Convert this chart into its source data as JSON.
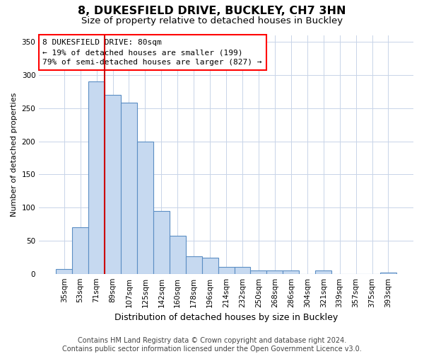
{
  "title": "8, DUKESFIELD DRIVE, BUCKLEY, CH7 3HN",
  "subtitle": "Size of property relative to detached houses in Buckley",
  "xlabel": "Distribution of detached houses by size in Buckley",
  "ylabel": "Number of detached properties",
  "bar_labels": [
    "35sqm",
    "53sqm",
    "71sqm",
    "89sqm",
    "107sqm",
    "125sqm",
    "142sqm",
    "160sqm",
    "178sqm",
    "196sqm",
    "214sqm",
    "232sqm",
    "250sqm",
    "268sqm",
    "286sqm",
    "304sqm",
    "321sqm",
    "339sqm",
    "357sqm",
    "375sqm",
    "393sqm"
  ],
  "bar_values": [
    7,
    70,
    290,
    270,
    258,
    200,
    95,
    57,
    26,
    24,
    10,
    10,
    5,
    5,
    5,
    0,
    5,
    0,
    0,
    0,
    2
  ],
  "bar_color": "#c6d9f0",
  "bar_edge_color": "#5b8ec4",
  "red_line_color": "#cc0000",
  "annotation_line1": "8 DUKESFIELD DRIVE: 80sqm",
  "annotation_line2": "← 19% of detached houses are smaller (199)",
  "annotation_line3": "79% of semi-detached houses are larger (827) →",
  "ylim": [
    0,
    360
  ],
  "yticks": [
    0,
    50,
    100,
    150,
    200,
    250,
    300,
    350
  ],
  "background_color": "#ffffff",
  "grid_color": "#c8d4e8",
  "footer_text": "Contains HM Land Registry data © Crown copyright and database right 2024.\nContains public sector information licensed under the Open Government Licence v3.0.",
  "title_fontsize": 11.5,
  "subtitle_fontsize": 9.5,
  "xlabel_fontsize": 9,
  "ylabel_fontsize": 8,
  "tick_fontsize": 7.5,
  "annotation_fontsize": 8,
  "footer_fontsize": 7
}
